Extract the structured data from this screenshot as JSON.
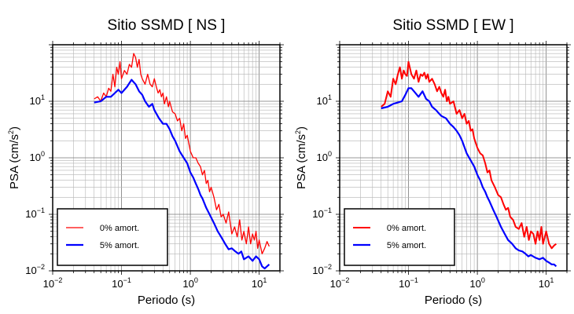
{
  "chart_data": [
    {
      "type": "line",
      "title": "Sitio SSMD [ NS ]",
      "xlabel": "Periodo (s)",
      "ylabel_base": "PSA (cm/s",
      "ylabel_sup": "2",
      "ylabel_end": ")",
      "xscale": "log",
      "yscale": "log",
      "xlim": [
        0.01,
        20
      ],
      "ylim": [
        0.01,
        100
      ],
      "grid": true,
      "legend_position": "bottom-left",
      "xticks": [
        {
          "base": "10",
          "exp": "−2"
        },
        {
          "base": "10",
          "exp": "−1"
        },
        {
          "base": "10",
          "exp": "0"
        },
        {
          "base": "10",
          "exp": "1"
        }
      ],
      "yticks": [
        {
          "base": "10",
          "exp": "−2"
        },
        {
          "base": "10",
          "exp": "−1"
        },
        {
          "base": "10",
          "exp": "0"
        },
        {
          "base": "10",
          "exp": "1"
        }
      ],
      "series": [
        {
          "name": "0% amort.",
          "color": "#ff0000",
          "width": 1.3,
          "x": [
            0.04,
            0.045,
            0.05,
            0.055,
            0.06,
            0.065,
            0.07,
            0.075,
            0.08,
            0.085,
            0.09,
            0.095,
            0.1,
            0.11,
            0.12,
            0.13,
            0.14,
            0.15,
            0.16,
            0.17,
            0.18,
            0.19,
            0.2,
            0.22,
            0.24,
            0.26,
            0.28,
            0.3,
            0.32,
            0.34,
            0.36,
            0.38,
            0.4,
            0.42,
            0.45,
            0.48,
            0.5,
            0.55,
            0.6,
            0.65,
            0.7,
            0.75,
            0.8,
            0.85,
            0.9,
            1.0,
            1.1,
            1.2,
            1.3,
            1.4,
            1.5,
            1.6,
            1.7,
            1.8,
            1.9,
            2.0,
            2.2,
            2.4,
            2.6,
            2.8,
            3.0,
            3.3,
            3.6,
            4.0,
            4.4,
            4.8,
            5.2,
            5.6,
            6.0,
            6.5,
            7.0,
            7.5,
            8.0,
            8.5,
            9.0,
            9.5,
            10,
            11,
            12,
            13,
            14
          ],
          "y": [
            11,
            12,
            10,
            14,
            12,
            17,
            15,
            30,
            18,
            40,
            30,
            50,
            25,
            35,
            30,
            45,
            40,
            70,
            60,
            40,
            55,
            30,
            25,
            20,
            30,
            20,
            18,
            25,
            18,
            14,
            16,
            12,
            14,
            9,
            12,
            8,
            10,
            6.5,
            6,
            4.5,
            5,
            3,
            4,
            2.2,
            2.5,
            1.3,
            1.0,
            1.0,
            0.8,
            0.7,
            0.5,
            0.6,
            0.35,
            0.4,
            0.25,
            0.3,
            0.2,
            0.12,
            0.15,
            0.09,
            0.1,
            0.07,
            0.11,
            0.045,
            0.06,
            0.04,
            0.08,
            0.035,
            0.05,
            0.03,
            0.06,
            0.03,
            0.045,
            0.035,
            0.05,
            0.025,
            0.035,
            0.02,
            0.025,
            0.033,
            0.027
          ]
        },
        {
          "name": "5% amort.",
          "color": "#0000ff",
          "width": 2.2,
          "x": [
            0.04,
            0.05,
            0.06,
            0.07,
            0.08,
            0.09,
            0.1,
            0.12,
            0.14,
            0.16,
            0.18,
            0.2,
            0.22,
            0.25,
            0.28,
            0.3,
            0.35,
            0.4,
            0.45,
            0.5,
            0.55,
            0.6,
            0.7,
            0.8,
            0.9,
            1.0,
            1.1,
            1.2,
            1.3,
            1.4,
            1.5,
            1.7,
            1.9,
            2.2,
            2.5,
            2.8,
            3.2,
            3.6,
            4.0,
            4.5,
            5.0,
            5.5,
            6.0,
            7.0,
            8.0,
            9.0,
            10,
            11,
            12,
            13,
            14
          ],
          "y": [
            9.5,
            10,
            12,
            12,
            14,
            16,
            14,
            18,
            24,
            20,
            15,
            13,
            10,
            8,
            9,
            7,
            5,
            4,
            4,
            3.2,
            2.4,
            2.0,
            1.3,
            1.0,
            0.8,
            0.55,
            0.45,
            0.35,
            0.28,
            0.22,
            0.19,
            0.13,
            0.1,
            0.07,
            0.05,
            0.04,
            0.03,
            0.024,
            0.025,
            0.022,
            0.02,
            0.022,
            0.016,
            0.018,
            0.015,
            0.018,
            0.016,
            0.012,
            0.011,
            0.012,
            0.013
          ]
        }
      ]
    },
    {
      "type": "line",
      "title": "Sitio SSMD [ EW ]",
      "xlabel": "Periodo (s)",
      "ylabel_base": "PSA (cm/s",
      "ylabel_sup": "2",
      "ylabel_end": ")",
      "xscale": "log",
      "yscale": "log",
      "xlim": [
        0.01,
        20
      ],
      "ylim": [
        0.01,
        100
      ],
      "grid": true,
      "legend_position": "bottom-left",
      "xticks": [
        {
          "base": "10",
          "exp": "−2"
        },
        {
          "base": "10",
          "exp": "−1"
        },
        {
          "base": "10",
          "exp": "0"
        },
        {
          "base": "10",
          "exp": "1"
        }
      ],
      "yticks": [
        {
          "base": "10",
          "exp": "−2"
        },
        {
          "base": "10",
          "exp": "−1"
        },
        {
          "base": "10",
          "exp": "0"
        },
        {
          "base": "10",
          "exp": "1"
        }
      ],
      "series": [
        {
          "name": "0% amort.",
          "color": "#ff0000",
          "width": 2.0,
          "x": [
            0.04,
            0.045,
            0.05,
            0.055,
            0.06,
            0.065,
            0.07,
            0.075,
            0.08,
            0.085,
            0.09,
            0.095,
            0.1,
            0.11,
            0.12,
            0.13,
            0.14,
            0.15,
            0.16,
            0.17,
            0.18,
            0.19,
            0.2,
            0.22,
            0.24,
            0.26,
            0.28,
            0.3,
            0.32,
            0.34,
            0.36,
            0.38,
            0.4,
            0.45,
            0.5,
            0.55,
            0.6,
            0.65,
            0.7,
            0.75,
            0.8,
            0.85,
            0.9,
            1.0,
            1.1,
            1.2,
            1.3,
            1.4,
            1.5,
            1.6,
            1.8,
            2.0,
            2.2,
            2.4,
            2.6,
            2.8,
            3.0,
            3.3,
            3.6,
            4.0,
            4.4,
            4.8,
            5.2,
            5.6,
            6.0,
            6.5,
            7.0,
            7.5,
            8.0,
            8.5,
            9.0,
            10,
            11,
            12,
            13,
            14
          ],
          "y": [
            8,
            9,
            15,
            12,
            25,
            20,
            30,
            40,
            25,
            35,
            30,
            28,
            50,
            30,
            25,
            35,
            22,
            30,
            28,
            32,
            25,
            30,
            22,
            25,
            20,
            15,
            18,
            14,
            12,
            16,
            10,
            12,
            9,
            10,
            6,
            7,
            5,
            6,
            4,
            4.5,
            3,
            3.2,
            2.2,
            1.5,
            1.2,
            1.1,
            0.8,
            0.55,
            0.6,
            0.4,
            0.3,
            0.22,
            0.2,
            0.15,
            0.12,
            0.13,
            0.09,
            0.08,
            0.06,
            0.055,
            0.07,
            0.04,
            0.06,
            0.035,
            0.05,
            0.045,
            0.03,
            0.05,
            0.035,
            0.06,
            0.03,
            0.05,
            0.03,
            0.025,
            0.028,
            0.03
          ]
        },
        {
          "name": "5% amort.",
          "color": "#0000ff",
          "width": 2.2,
          "x": [
            0.04,
            0.05,
            0.06,
            0.07,
            0.08,
            0.09,
            0.1,
            0.11,
            0.12,
            0.14,
            0.16,
            0.18,
            0.2,
            0.22,
            0.25,
            0.28,
            0.3,
            0.35,
            0.4,
            0.45,
            0.5,
            0.55,
            0.6,
            0.7,
            0.8,
            0.9,
            1.0,
            1.1,
            1.2,
            1.3,
            1.4,
            1.5,
            1.7,
            1.9,
            2.2,
            2.5,
            2.8,
            3.2,
            3.6,
            4.0,
            4.5,
            5.0,
            5.5,
            6.0,
            7.0,
            8.0,
            9.0,
            10,
            11,
            12,
            13,
            14
          ],
          "y": [
            7.5,
            8,
            9,
            9.5,
            10,
            13,
            17,
            17,
            15,
            12,
            15,
            11,
            10,
            8,
            7,
            6,
            5.5,
            5,
            4,
            3.5,
            3,
            2.5,
            2,
            1.2,
            0.9,
            0.7,
            0.5,
            0.4,
            0.3,
            0.25,
            0.2,
            0.17,
            0.12,
            0.09,
            0.06,
            0.045,
            0.035,
            0.03,
            0.025,
            0.023,
            0.022,
            0.02,
            0.018,
            0.019,
            0.017,
            0.016,
            0.017,
            0.015,
            0.014,
            0.013,
            0.013,
            0.012
          ]
        }
      ]
    }
  ]
}
